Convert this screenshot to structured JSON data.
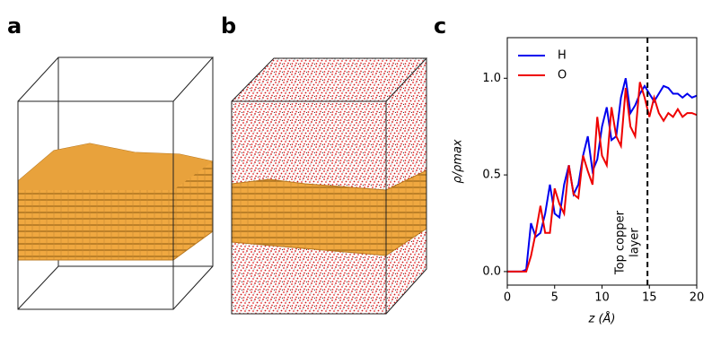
{
  "panel_labels": [
    "a",
    "b",
    "c"
  ],
  "chart_data": {
    "type": "line",
    "x_label": "z (Å)",
    "y_label": "ρ/ρmax",
    "x": [
      0,
      0.5,
      1,
      1.5,
      2,
      2.5,
      3,
      3.5,
      4,
      4.5,
      5,
      5.5,
      6,
      6.5,
      7,
      7.5,
      8,
      8.5,
      9,
      9.5,
      10,
      10.5,
      11,
      11.5,
      12,
      12.5,
      13,
      13.5,
      14,
      14.5,
      15,
      15.5,
      16,
      16.5,
      17,
      17.5,
      18,
      18.5,
      19,
      19.5,
      20
    ],
    "series": [
      {
        "name": "H",
        "color": "#0000ee",
        "values": [
          0,
          0,
          0,
          0,
          0.01,
          0.25,
          0.18,
          0.2,
          0.3,
          0.45,
          0.3,
          0.28,
          0.45,
          0.55,
          0.4,
          0.45,
          0.6,
          0.7,
          0.52,
          0.58,
          0.75,
          0.85,
          0.68,
          0.7,
          0.9,
          1.0,
          0.82,
          0.86,
          0.92,
          0.96,
          0.92,
          0.88,
          0.92,
          0.96,
          0.95,
          0.92,
          0.92,
          0.9,
          0.92,
          0.9,
          0.91
        ]
      },
      {
        "name": "O",
        "color": "#ee0000",
        "values": [
          0,
          0,
          0,
          0,
          0,
          0.08,
          0.2,
          0.34,
          0.2,
          0.2,
          0.43,
          0.35,
          0.3,
          0.55,
          0.4,
          0.38,
          0.6,
          0.52,
          0.45,
          0.8,
          0.6,
          0.55,
          0.85,
          0.7,
          0.65,
          0.95,
          0.75,
          0.7,
          0.98,
          0.9,
          0.8,
          0.9,
          0.82,
          0.78,
          0.82,
          0.8,
          0.84,
          0.8,
          0.82,
          0.82,
          0.81
        ]
      }
    ],
    "xlim": [
      0,
      20
    ],
    "xticks": [
      0,
      5,
      10,
      15,
      20
    ],
    "ylim": [
      -0.07,
      1.21
    ],
    "yticks": [
      {
        "value": 0,
        "label": "0.0"
      },
      {
        "value": 0.5,
        "label": "0.5"
      },
      {
        "value": 1,
        "label": "1.0"
      }
    ],
    "vline_x": 14.8,
    "annotation": [
      "Top copper",
      "layer"
    ],
    "legend": "upper left"
  }
}
